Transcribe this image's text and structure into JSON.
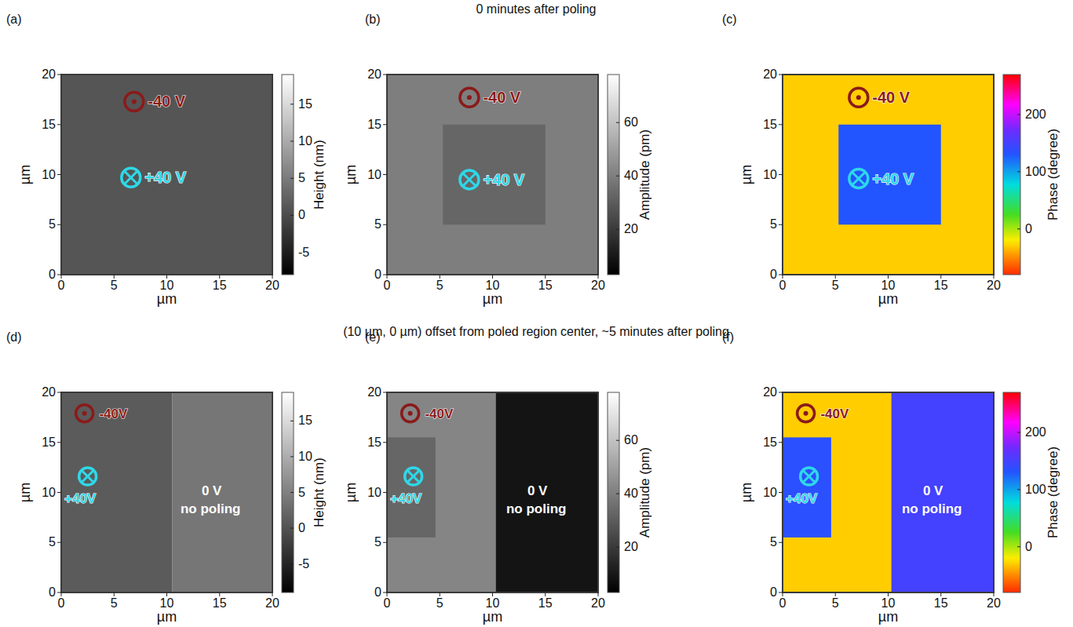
{
  "row_titles": [
    "0 minutes after poling",
    "(10 µm, 0 µm) offset from poled region center, ~5 minutes after poling"
  ],
  "chart_data": [
    {
      "type": "heatmap",
      "panel": "(a)",
      "xlabel": "µm",
      "ylabel": "µm",
      "xlim": [
        0,
        20
      ],
      "ylim": [
        0,
        20
      ],
      "xticks": [
        0,
        5,
        10,
        15,
        20
      ],
      "yticks": [
        0,
        5,
        10,
        15,
        20
      ],
      "colorbar": {
        "label": "Height (nm)",
        "range": [
          -8,
          19
        ],
        "ticks": [
          -5,
          0,
          5,
          10,
          15
        ],
        "color": "gray"
      },
      "regions": [
        {
          "x": [
            0,
            20
          ],
          "y": [
            0,
            20
          ],
          "value": 1
        }
      ],
      "annotations": [
        {
          "marker": "dot-circle",
          "x": 6.9,
          "y": 17.3,
          "color": "#8b1a1a"
        },
        {
          "text": "-40 V",
          "x": 8.2,
          "y": 17.3,
          "color": "#8b1a1a"
        },
        {
          "marker": "cross-circle",
          "x": 6.6,
          "y": 9.7,
          "color": "#2ed8e8"
        },
        {
          "text": "+40 V",
          "x": 7.9,
          "y": 9.7,
          "color": "#2ed8e8"
        }
      ]
    },
    {
      "type": "heatmap",
      "panel": "(b)",
      "xlabel": "µm",
      "ylabel": "µm",
      "xlim": [
        0,
        20
      ],
      "ylim": [
        0,
        20
      ],
      "xticks": [
        0,
        5,
        10,
        15,
        20
      ],
      "yticks": [
        0,
        5,
        10,
        15,
        20
      ],
      "colorbar": {
        "label": "Amplitude (pm)",
        "range": [
          3,
          78
        ],
        "ticks": [
          20,
          40,
          60
        ],
        "color": "gray"
      },
      "regions": [
        {
          "x": [
            0,
            20
          ],
          "y": [
            0,
            20
          ],
          "value": 40
        },
        {
          "x": [
            5.3,
            15
          ],
          "y": [
            5,
            15
          ],
          "value": 33
        }
      ],
      "annotations": [
        {
          "marker": "dot-circle",
          "x": 7.8,
          "y": 17.7,
          "color": "#8b1a1a"
        },
        {
          "text": "-40 V",
          "x": 9.1,
          "y": 17.7,
          "color": "#8b1a1a"
        },
        {
          "marker": "cross-circle",
          "x": 7.8,
          "y": 9.5,
          "color": "#2ed8e8"
        },
        {
          "text": "+40 V",
          "x": 9.1,
          "y": 9.5,
          "color": "#2ed8e8"
        }
      ]
    },
    {
      "type": "heatmap",
      "panel": "(c)",
      "xlabel": "µm",
      "ylabel": "µm",
      "xlim": [
        0,
        20
      ],
      "ylim": [
        0,
        20
      ],
      "xticks": [
        0,
        5,
        10,
        15,
        20
      ],
      "yticks": [
        0,
        5,
        10,
        15,
        20
      ],
      "colorbar": {
        "label": "Phase (degree)",
        "range": [
          -80,
          270
        ],
        "ticks": [
          0,
          100,
          200
        ],
        "color": "hsv"
      },
      "regions": [
        {
          "x": [
            0,
            20
          ],
          "y": [
            0,
            20
          ],
          "value": -30
        },
        {
          "x": [
            5.3,
            15
          ],
          "y": [
            5,
            15
          ],
          "value": 130
        }
      ],
      "annotations": [
        {
          "marker": "dot-circle",
          "x": 7.2,
          "y": 17.7,
          "color": "#8b1a1a"
        },
        {
          "text": "-40 V",
          "x": 8.5,
          "y": 17.7,
          "color": "#8b1a1a"
        },
        {
          "marker": "cross-circle",
          "x": 7.2,
          "y": 9.6,
          "color": "#2ed8e8"
        },
        {
          "text": "+40 V",
          "x": 8.5,
          "y": 9.6,
          "color": "#2ed8e8"
        }
      ]
    },
    {
      "type": "heatmap",
      "panel": "(d)",
      "xlabel": "µm",
      "ylabel": "µm",
      "xlim": [
        0,
        20
      ],
      "ylim": [
        0,
        20
      ],
      "xticks": [
        0,
        5,
        10,
        15,
        20
      ],
      "yticks": [
        0,
        5,
        10,
        15,
        20
      ],
      "colorbar": {
        "label": "Height (nm)",
        "range": [
          -9,
          19
        ],
        "ticks": [
          -5,
          0,
          5,
          10,
          15
        ],
        "color": "gray"
      },
      "regions": [
        {
          "x": [
            0,
            10.5
          ],
          "y": [
            0,
            20
          ],
          "value": 1
        },
        {
          "x": [
            10.5,
            20
          ],
          "y": [
            0,
            20
          ],
          "value": 4
        }
      ],
      "annotations": [
        {
          "marker": "dot-circle",
          "x": 2.2,
          "y": 17.9,
          "color": "#8b1a1a"
        },
        {
          "text": "-40V",
          "x": 3.6,
          "y": 17.9,
          "color": "#8b1a1a"
        },
        {
          "marker": "cross-circle",
          "x": 2.5,
          "y": 11.6,
          "color": "#2ed8e8"
        },
        {
          "text": "+40V",
          "x": 0.3,
          "y": 9.4,
          "color": "#2ed8e8"
        },
        {
          "text": "0 V",
          "x": 13.3,
          "y": 10.2,
          "color": "#ffffff"
        },
        {
          "text": "no poling",
          "x": 11.3,
          "y": 8.4,
          "color": "#ffffff"
        }
      ]
    },
    {
      "type": "heatmap",
      "panel": "(e)",
      "xlabel": "µm",
      "ylabel": "µm",
      "xlim": [
        0,
        20
      ],
      "ylim": [
        0,
        20
      ],
      "xticks": [
        0,
        5,
        10,
        15,
        20
      ],
      "yticks": [
        0,
        5,
        10,
        15,
        20
      ],
      "colorbar": {
        "label": "Amplitude (pm)",
        "range": [
          3,
          78
        ],
        "ticks": [
          20,
          40,
          60
        ],
        "color": "gray"
      },
      "regions": [
        {
          "x": [
            0,
            10.3
          ],
          "y": [
            0,
            20
          ],
          "value": 42
        },
        {
          "x": [
            0,
            4.6
          ],
          "y": [
            5.5,
            15.5
          ],
          "value": 33
        },
        {
          "x": [
            10.3,
            20
          ],
          "y": [
            0,
            20
          ],
          "value": 9
        }
      ],
      "annotations": [
        {
          "marker": "dot-circle",
          "x": 2.2,
          "y": 17.9,
          "color": "#8b1a1a"
        },
        {
          "text": "-40V",
          "x": 3.6,
          "y": 17.9,
          "color": "#8b1a1a"
        },
        {
          "marker": "cross-circle",
          "x": 2.5,
          "y": 11.6,
          "color": "#2ed8e8"
        },
        {
          "text": "+40V",
          "x": 0.3,
          "y": 9.4,
          "color": "#2ed8e8"
        },
        {
          "text": "0 V",
          "x": 13.3,
          "y": 10.2,
          "color": "#ffffff"
        },
        {
          "text": "no poling",
          "x": 11.3,
          "y": 8.4,
          "color": "#ffffff"
        }
      ]
    },
    {
      "type": "heatmap",
      "panel": "(f)",
      "xlabel": "µm",
      "ylabel": "µm",
      "xlim": [
        0,
        20
      ],
      "ylim": [
        0,
        20
      ],
      "xticks": [
        0,
        5,
        10,
        15,
        20
      ],
      "yticks": [
        0,
        5,
        10,
        15,
        20
      ],
      "colorbar": {
        "label": "Phase (degree)",
        "range": [
          -80,
          270
        ],
        "ticks": [
          0,
          100,
          200
        ],
        "color": "hsv"
      },
      "regions": [
        {
          "x": [
            0,
            10.3
          ],
          "y": [
            0,
            20
          ],
          "value": -30
        },
        {
          "x": [
            0,
            4.6
          ],
          "y": [
            5.5,
            15.5
          ],
          "value": 135
        },
        {
          "x": [
            10.3,
            20
          ],
          "y": [
            0,
            20
          ],
          "value": 150
        }
      ],
      "annotations": [
        {
          "marker": "dot-circle",
          "x": 2.2,
          "y": 17.9,
          "color": "#8b1a1a"
        },
        {
          "text": "-40V",
          "x": 3.6,
          "y": 17.9,
          "color": "#8b1a1a"
        },
        {
          "marker": "cross-circle",
          "x": 2.5,
          "y": 11.6,
          "color": "#2ed8e8"
        },
        {
          "text": "+40V",
          "x": 0.3,
          "y": 9.4,
          "color": "#2ed8e8"
        },
        {
          "text": "0 V",
          "x": 13.3,
          "y": 10.2,
          "color": "#ffffff"
        },
        {
          "text": "no poling",
          "x": 11.3,
          "y": 8.4,
          "color": "#ffffff"
        }
      ]
    }
  ]
}
